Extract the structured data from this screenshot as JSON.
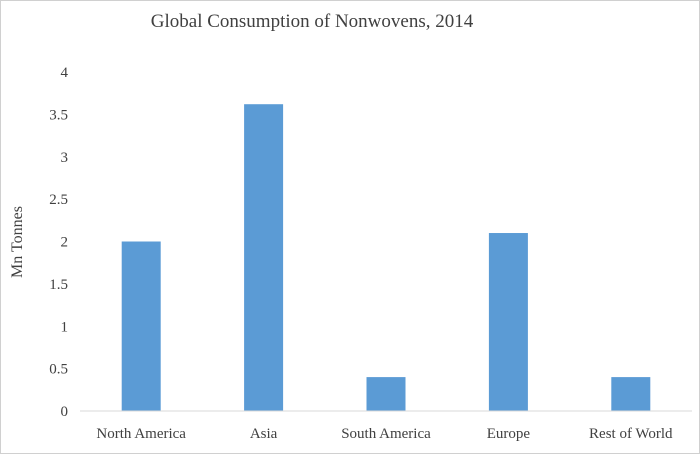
{
  "chart_data": {
    "type": "bar",
    "title": "Global Consumption of Nonwovens, 2014",
    "xlabel": "",
    "ylabel": "Mn Tonnes",
    "categories": [
      "North America",
      "Asia",
      "South America",
      "Europe",
      "Rest of World"
    ],
    "values": [
      2.0,
      3.62,
      0.4,
      2.1,
      0.4
    ],
    "ylim": [
      0,
      4
    ],
    "yticks": [
      "0",
      "0.5",
      "1",
      "1.5",
      "2",
      "2.5",
      "3",
      "3.5",
      "4"
    ],
    "grid": false,
    "legend": "none",
    "bar_color": "#5B9BD5"
  }
}
